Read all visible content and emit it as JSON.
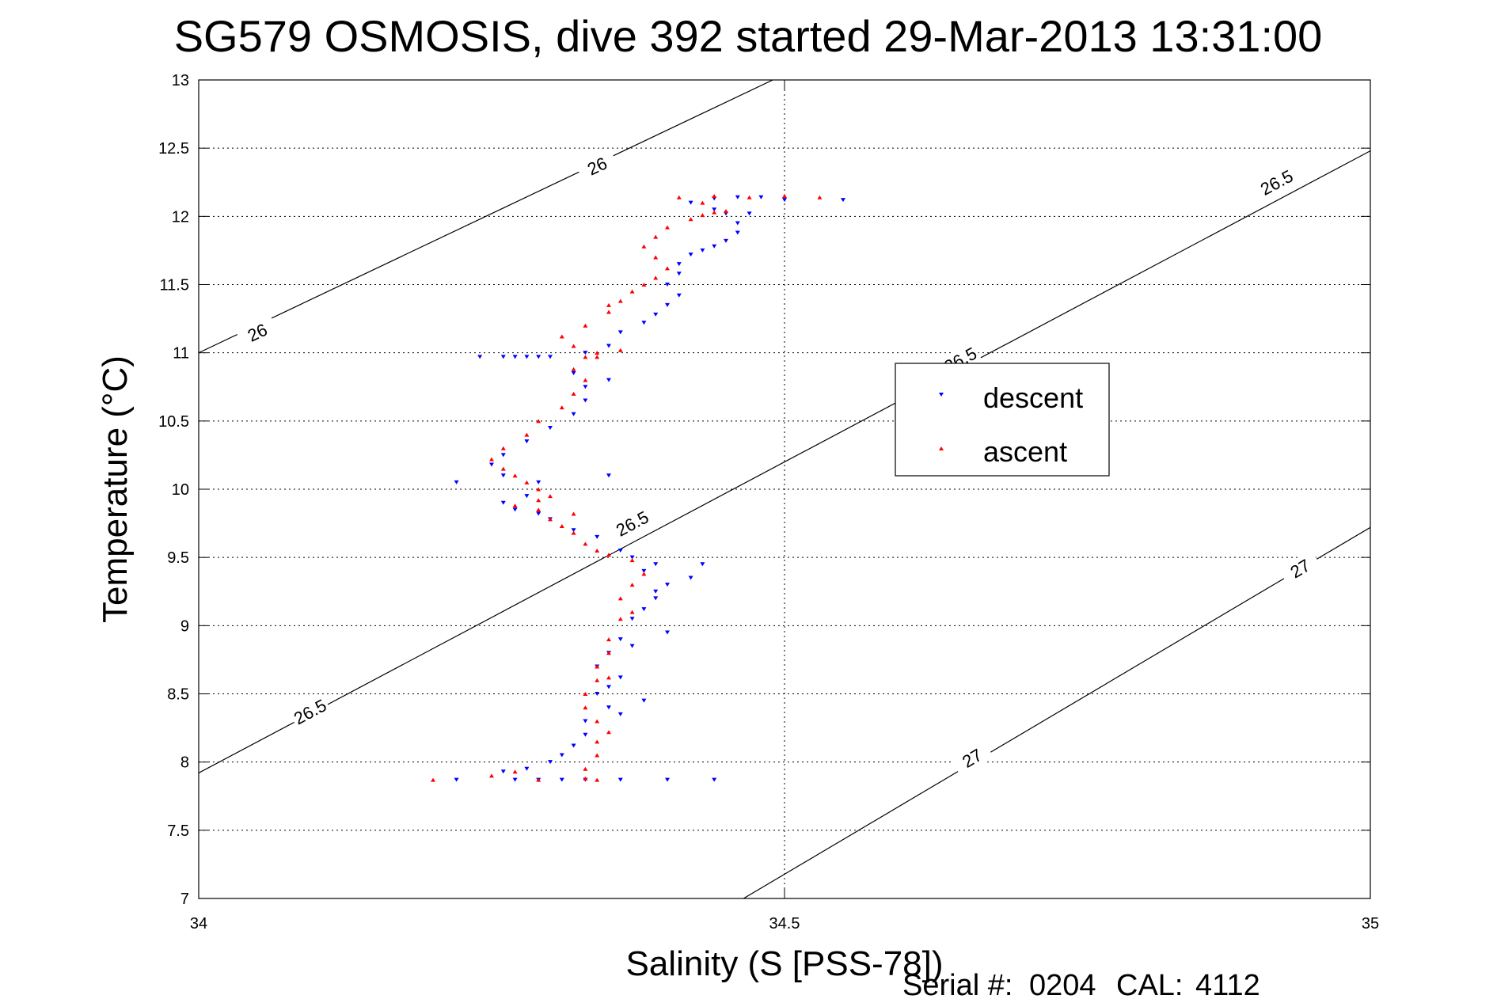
{
  "chart_data": {
    "type": "scatter",
    "title": "SG579 OSMOSIS, dive 392 started 29-Mar-2013 13:31:00",
    "xlabel": "Salinity (S [PSS-78])",
    "ylabel": "Temperature (°C)",
    "xlim": [
      34,
      35
    ],
    "ylim": [
      7,
      13
    ],
    "x_ticks": [
      "34",
      "34.5",
      "35"
    ],
    "y_ticks": [
      "7",
      "7.5",
      "8",
      "8.5",
      "9",
      "9.5",
      "10",
      "10.5",
      "11",
      "11.5",
      "12",
      "12.5",
      "13"
    ],
    "grid": true,
    "legend_position": "right",
    "contours": [
      {
        "label": "26",
        "points": [
          [
            34.0,
            11.0
          ],
          [
            34.49,
            13.0
          ]
        ],
        "label_positions": [
          [
            34.05,
            11.15
          ],
          [
            34.34,
            12.37
          ]
        ]
      },
      {
        "label": "26.5",
        "points": [
          [
            34.0,
            7.92
          ],
          [
            35.0,
            12.48
          ]
        ],
        "label_positions": [
          [
            34.095,
            8.37
          ],
          [
            34.65,
            10.95
          ],
          [
            34.37,
            9.75
          ],
          [
            34.92,
            12.25
          ]
        ]
      },
      {
        "label": "27",
        "points": [
          [
            34.465,
            7.0
          ],
          [
            35.0,
            9.72
          ]
        ],
        "label_positions": [
          [
            34.66,
            8.03
          ],
          [
            34.94,
            9.42
          ]
        ]
      }
    ],
    "series": [
      {
        "name": "descent",
        "color": "#0000ff",
        "marker": "triangle-down",
        "points": [
          [
            34.27,
            7.87
          ],
          [
            34.29,
            7.87
          ],
          [
            34.31,
            7.87
          ],
          [
            34.33,
            7.87
          ],
          [
            34.36,
            7.87
          ],
          [
            34.4,
            7.87
          ],
          [
            34.44,
            7.87
          ],
          [
            34.22,
            7.87
          ],
          [
            34.26,
            7.93
          ],
          [
            34.28,
            7.95
          ],
          [
            34.3,
            8.0
          ],
          [
            34.31,
            8.05
          ],
          [
            34.32,
            8.12
          ],
          [
            34.33,
            8.2
          ],
          [
            34.33,
            8.3
          ],
          [
            34.35,
            8.4
          ],
          [
            34.34,
            8.5
          ],
          [
            34.35,
            8.55
          ],
          [
            34.36,
            8.62
          ],
          [
            34.34,
            8.7
          ],
          [
            34.35,
            8.8
          ],
          [
            34.36,
            8.9
          ],
          [
            34.37,
            9.05
          ],
          [
            34.38,
            9.12
          ],
          [
            34.39,
            9.2
          ],
          [
            34.4,
            9.3
          ],
          [
            34.42,
            9.35
          ],
          [
            34.38,
            9.4
          ],
          [
            34.39,
            9.45
          ],
          [
            34.37,
            9.5
          ],
          [
            34.36,
            9.55
          ],
          [
            34.34,
            9.65
          ],
          [
            34.32,
            9.7
          ],
          [
            34.3,
            9.78
          ],
          [
            34.29,
            9.82
          ],
          [
            34.27,
            9.85
          ],
          [
            34.26,
            9.9
          ],
          [
            34.28,
            9.95
          ],
          [
            34.29,
            10.05
          ],
          [
            34.26,
            10.1
          ],
          [
            34.25,
            10.18
          ],
          [
            34.26,
            10.25
          ],
          [
            34.28,
            10.35
          ],
          [
            34.3,
            10.45
          ],
          [
            34.32,
            10.55
          ],
          [
            34.33,
            10.65
          ],
          [
            34.33,
            10.75
          ],
          [
            34.32,
            10.85
          ],
          [
            34.3,
            10.97
          ],
          [
            34.29,
            10.97
          ],
          [
            34.28,
            10.97
          ],
          [
            34.27,
            10.97
          ],
          [
            34.26,
            10.97
          ],
          [
            34.24,
            10.97
          ],
          [
            34.33,
            11.0
          ],
          [
            34.35,
            11.05
          ],
          [
            34.36,
            11.15
          ],
          [
            34.38,
            11.22
          ],
          [
            34.39,
            11.28
          ],
          [
            34.4,
            11.35
          ],
          [
            34.41,
            11.42
          ],
          [
            34.4,
            11.5
          ],
          [
            34.41,
            11.58
          ],
          [
            34.41,
            11.65
          ],
          [
            34.42,
            11.72
          ],
          [
            34.43,
            11.75
          ],
          [
            34.44,
            11.78
          ],
          [
            34.45,
            11.82
          ],
          [
            34.46,
            11.88
          ],
          [
            34.46,
            11.95
          ],
          [
            34.45,
            12.02
          ],
          [
            34.47,
            12.02
          ],
          [
            34.44,
            12.05
          ],
          [
            34.42,
            12.1
          ],
          [
            34.44,
            12.13
          ],
          [
            34.46,
            12.14
          ],
          [
            34.48,
            12.14
          ],
          [
            34.5,
            12.12
          ],
          [
            34.55,
            12.12
          ],
          [
            34.22,
            10.05
          ],
          [
            34.35,
            10.1
          ],
          [
            34.43,
            9.45
          ],
          [
            34.4,
            8.95
          ],
          [
            34.37,
            8.85
          ],
          [
            34.38,
            8.45
          ],
          [
            34.36,
            8.35
          ],
          [
            34.39,
            9.25
          ],
          [
            34.35,
            10.8
          ]
        ]
      },
      {
        "name": "ascent",
        "color": "#ff0000",
        "marker": "triangle-up",
        "points": [
          [
            34.2,
            7.87
          ],
          [
            34.25,
            7.9
          ],
          [
            34.27,
            7.93
          ],
          [
            34.29,
            7.87
          ],
          [
            34.34,
            7.87
          ],
          [
            34.33,
            7.88
          ],
          [
            34.33,
            7.95
          ],
          [
            34.34,
            8.05
          ],
          [
            34.34,
            8.15
          ],
          [
            34.35,
            8.22
          ],
          [
            34.34,
            8.3
          ],
          [
            34.33,
            8.4
          ],
          [
            34.33,
            8.5
          ],
          [
            34.34,
            8.6
          ],
          [
            34.35,
            8.62
          ],
          [
            34.34,
            8.7
          ],
          [
            34.35,
            8.8
          ],
          [
            34.35,
            8.9
          ],
          [
            34.36,
            9.05
          ],
          [
            34.37,
            9.1
          ],
          [
            34.36,
            9.2
          ],
          [
            34.37,
            9.3
          ],
          [
            34.38,
            9.38
          ],
          [
            34.37,
            9.48
          ],
          [
            34.35,
            9.52
          ],
          [
            34.34,
            9.55
          ],
          [
            34.33,
            9.6
          ],
          [
            34.32,
            9.68
          ],
          [
            34.31,
            9.73
          ],
          [
            34.3,
            9.78
          ],
          [
            34.32,
            9.82
          ],
          [
            34.29,
            9.85
          ],
          [
            34.27,
            9.88
          ],
          [
            34.29,
            9.92
          ],
          [
            34.3,
            9.95
          ],
          [
            34.29,
            10.0
          ],
          [
            34.28,
            10.05
          ],
          [
            34.27,
            10.1
          ],
          [
            34.26,
            10.15
          ],
          [
            34.25,
            10.22
          ],
          [
            34.26,
            10.3
          ],
          [
            34.28,
            10.4
          ],
          [
            34.29,
            10.5
          ],
          [
            34.31,
            10.6
          ],
          [
            34.32,
            10.7
          ],
          [
            34.33,
            10.8
          ],
          [
            34.32,
            10.88
          ],
          [
            34.33,
            10.97
          ],
          [
            34.34,
            11.0
          ],
          [
            34.36,
            11.02
          ],
          [
            34.32,
            11.05
          ],
          [
            34.31,
            11.12
          ],
          [
            34.33,
            11.2
          ],
          [
            34.35,
            11.3
          ],
          [
            34.36,
            11.38
          ],
          [
            34.37,
            11.45
          ],
          [
            34.38,
            11.5
          ],
          [
            34.39,
            11.55
          ],
          [
            34.4,
            11.62
          ],
          [
            34.39,
            11.7
          ],
          [
            34.38,
            11.78
          ],
          [
            34.39,
            11.85
          ],
          [
            34.4,
            11.92
          ],
          [
            34.42,
            11.98
          ],
          [
            34.43,
            12.01
          ],
          [
            34.44,
            12.03
          ],
          [
            34.45,
            12.04
          ],
          [
            34.43,
            12.1
          ],
          [
            34.41,
            12.14
          ],
          [
            34.44,
            12.15
          ],
          [
            34.47,
            12.14
          ],
          [
            34.5,
            12.15
          ],
          [
            34.53,
            12.14
          ],
          [
            34.34,
            10.97
          ],
          [
            34.35,
            11.35
          ]
        ]
      }
    ],
    "legend": [
      "descent",
      "ascent"
    ]
  },
  "footer": {
    "serial_label": "Serial #:",
    "serial_value": "0204",
    "cal_label": "CAL:",
    "cal_value": "4112"
  }
}
